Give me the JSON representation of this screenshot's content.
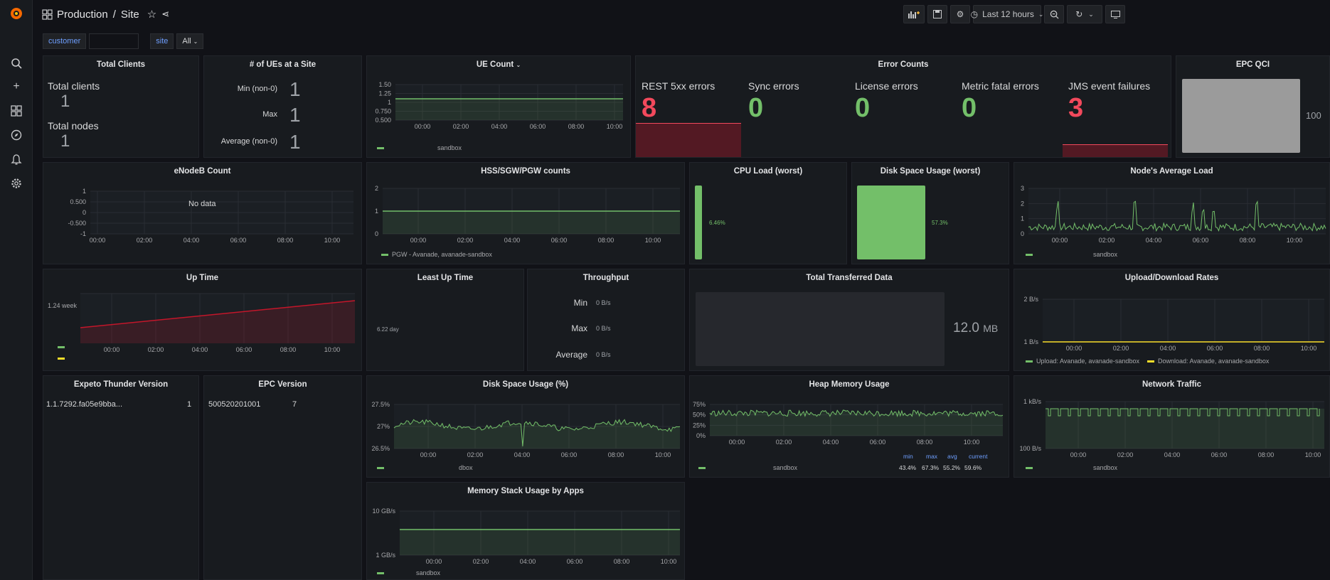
{
  "header": {
    "folder": "Production",
    "separator": "/",
    "title": "Site",
    "time_range": "Last 12 hours"
  },
  "variables": {
    "customer_label": "customer",
    "customer_value": "",
    "site_label": "site",
    "site_value": "All"
  },
  "panels": {
    "total_clients": {
      "title": "Total Clients",
      "clients_label": "Total clients",
      "clients_value": "1",
      "nodes_label": "Total nodes",
      "nodes_value": "1"
    },
    "ues_site": {
      "title": "# of UEs at a Site",
      "rows": [
        {
          "label": "Min (non-0)",
          "value": "1"
        },
        {
          "label": "Max",
          "value": "1"
        },
        {
          "label": "Average (non-0)",
          "value": "1"
        }
      ]
    },
    "ue_count": {
      "title": "UE Count",
      "y_ticks": [
        "1.50",
        "1.25",
        "1",
        "0.750",
        "0.500"
      ],
      "x_ticks": [
        "00:00",
        "02:00",
        "04:00",
        "06:00",
        "08:00",
        "10:00"
      ],
      "legend": "sandbox"
    },
    "error_counts": {
      "title": "Error Counts",
      "items": [
        {
          "label": "REST 5xx errors",
          "value": "8"
        },
        {
          "label": "Sync errors",
          "value": "0"
        },
        {
          "label": "License errors",
          "value": "0"
        },
        {
          "label": "Metric fatal errors",
          "value": "0"
        },
        {
          "label": "JMS event failures",
          "value": "3"
        }
      ]
    },
    "epc_qci": {
      "title": "EPC QCI",
      "value": "100"
    },
    "enodeb": {
      "title": "eNodeB Count",
      "no_data": "No data",
      "y_ticks": [
        "1",
        "0.500",
        "0",
        "-0.500",
        "-1"
      ],
      "x_ticks": [
        "00:00",
        "02:00",
        "04:00",
        "06:00",
        "08:00",
        "10:00"
      ]
    },
    "hss": {
      "title": "HSS/SGW/PGW counts",
      "y_ticks": [
        "2",
        "1",
        "0"
      ],
      "x_ticks": [
        "00:00",
        "02:00",
        "04:00",
        "06:00",
        "08:00",
        "10:00"
      ],
      "legend": "PGW - Avanade, avanade-sandbox"
    },
    "cpu": {
      "title": "CPU Load (worst)",
      "value": "6.46%",
      "fraction": 0.0646
    },
    "disk_worst": {
      "title": "Disk Space Usage (worst)",
      "value": "57.3%",
      "fraction": 0.573
    },
    "node_load": {
      "title": "Node's Average Load",
      "y_ticks": [
        "3",
        "2",
        "1",
        "0"
      ],
      "x_ticks": [
        "00:00",
        "02:00",
        "04:00",
        "06:00",
        "08:00",
        "10:00"
      ],
      "legend": "sandbox"
    },
    "uptime": {
      "title": "Up Time",
      "y_label": "1.24 week",
      "x_ticks": [
        "00:00",
        "02:00",
        "04:00",
        "06:00",
        "08:00",
        "10:00"
      ]
    },
    "least_uptime": {
      "title": "Least Up Time",
      "value": "6.22 day"
    },
    "throughput": {
      "title": "Throughput",
      "rows": [
        {
          "label": "Min",
          "value": "0 B/s"
        },
        {
          "label": "Max",
          "value": "0 B/s"
        },
        {
          "label": "Average",
          "value": "0 B/s"
        }
      ]
    },
    "transferred": {
      "title": "Total Transferred Data",
      "value": "12.0",
      "unit": "MB"
    },
    "updown": {
      "title": "Upload/Download Rates",
      "y_ticks": [
        "2 B/s",
        "1 B/s"
      ],
      "x_ticks": [
        "00:00",
        "02:00",
        "04:00",
        "06:00",
        "08:00",
        "10:00"
      ],
      "legend_upload": "Upload: Avanade, avanade-sandbox",
      "legend_download": "Download: Avanade, avanade-sandbox"
    },
    "thunder": {
      "title": "Expeto Thunder Version",
      "version": "1.1.7292.fa05e9bba...",
      "count": "1"
    },
    "epc_version": {
      "title": "EPC Version",
      "version": "500520201001",
      "count": "7"
    },
    "disk_pct": {
      "title": "Disk Space Usage (%)",
      "y_ticks": [
        "27.5%",
        "27%",
        "26.5%"
      ],
      "x_ticks": [
        "00:00",
        "02:00",
        "04:00",
        "06:00",
        "08:00",
        "10:00"
      ],
      "legend": "dbox"
    },
    "heap": {
      "title": "Heap Memory Usage",
      "y_ticks": [
        "75%",
        "50%",
        "25%",
        "0%"
      ],
      "x_ticks": [
        "00:00",
        "02:00",
        "04:00",
        "06:00",
        "08:00",
        "10:00"
      ],
      "legend": "sandbox",
      "stats_headers": [
        "min",
        "max",
        "avg",
        "current"
      ],
      "stats_values": [
        "43.4%",
        "67.3%",
        "55.2%",
        "59.6%"
      ]
    },
    "network": {
      "title": "Network Traffic",
      "y_ticks": [
        "1 kB/s",
        "100 B/s"
      ],
      "x_ticks": [
        "00:00",
        "02:00",
        "04:00",
        "06:00",
        "08:00",
        "10:00"
      ],
      "legend": "sandbox"
    },
    "memstack": {
      "title": "Memory Stack Usage by Apps",
      "y_ticks": [
        "10 GB/s",
        "1 GB/s"
      ],
      "x_ticks": [
        "00:00",
        "02:00",
        "04:00",
        "06:00",
        "08:00",
        "10:00"
      ],
      "legend": "sandbox"
    }
  },
  "colors": {
    "green": "#73bf69",
    "red": "#f2495c",
    "yellow": "#fade2a",
    "uptime_line": "#c4162a"
  }
}
